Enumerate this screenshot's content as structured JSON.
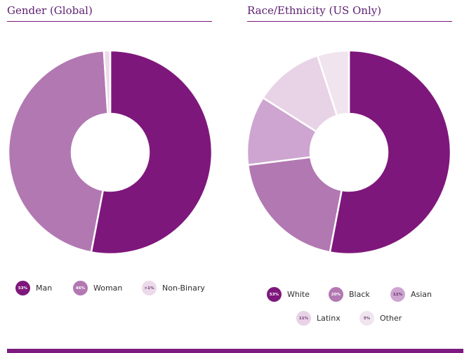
{
  "chart_data": [
    {
      "type": "pie",
      "title": "Gender (Global)",
      "series": [
        {
          "name": "Man",
          "value": 53,
          "label": "53%",
          "color": "#7e177c",
          "text_color": "#ffffff"
        },
        {
          "name": "Woman",
          "value": 46,
          "label": "46%",
          "color": "#b278b2",
          "text_color": "#ffffff"
        },
        {
          "name": "Non-Binary",
          "value": 1,
          "label": ">1%",
          "color": "#ecd9ea",
          "text_color": "#6a4070"
        }
      ]
    },
    {
      "type": "pie",
      "title": "Race/Ethnicity (US Only)",
      "series": [
        {
          "name": "White",
          "value": 53,
          "label": "53%",
          "color": "#7e177c",
          "text_color": "#ffffff"
        },
        {
          "name": "Black",
          "value": 20,
          "label": "20%",
          "color": "#b278b2",
          "text_color": "#ffffff"
        },
        {
          "name": "Asian",
          "value": 11,
          "label": "11%",
          "color": "#cda5d0",
          "text_color": "#5a2a60"
        },
        {
          "name": "Latinx",
          "value": 11,
          "label": "11%",
          "color": "#e8d3e6",
          "text_color": "#6a4070"
        },
        {
          "name": "Other",
          "value": 5,
          "label": "5%",
          "color": "#f0e5ee",
          "text_color": "#6a4070"
        }
      ]
    }
  ],
  "colors": {
    "accent": "#7c1a7f"
  }
}
